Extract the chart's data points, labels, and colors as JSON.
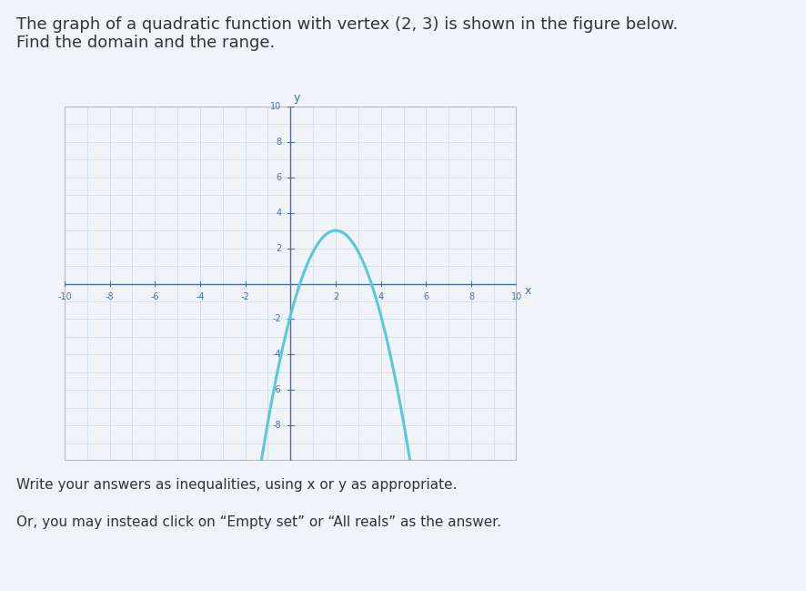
{
  "title_line1": "The graph of a quadratic function with vertex ",
  "vertex_text": "(2, 3)",
  "title_line2": " is shown in the figure below.",
  "title_line3": "Find the domain and the range.",
  "vertex_x": 2,
  "vertex_y": 3,
  "parabola_a": -1.2,
  "x_min": -10,
  "x_max": 10,
  "y_min": -10,
  "y_max": 10,
  "curve_color": "#5bc8d6",
  "axis_color": "#4a6fa5",
  "grid_color": "#c8d8e8",
  "background_color": "#f0f4f8",
  "text_color": "#333333",
  "subtitle_text1": "Write your answers as inequalities, using x or y as appropriate.",
  "subtitle_text2": "Or, you may instead click on “Empty set” or “All reals” as the answer.",
  "tick_step": 2,
  "minor_tick_step": 1,
  "x_ticks": [
    -10,
    -8,
    -6,
    -4,
    -2,
    2,
    4,
    6,
    8,
    10
  ],
  "y_ticks": [
    -8,
    -6,
    -4,
    -2,
    2,
    4,
    6,
    8,
    10
  ],
  "font_size_title": 13,
  "font_size_subtitle": 11
}
